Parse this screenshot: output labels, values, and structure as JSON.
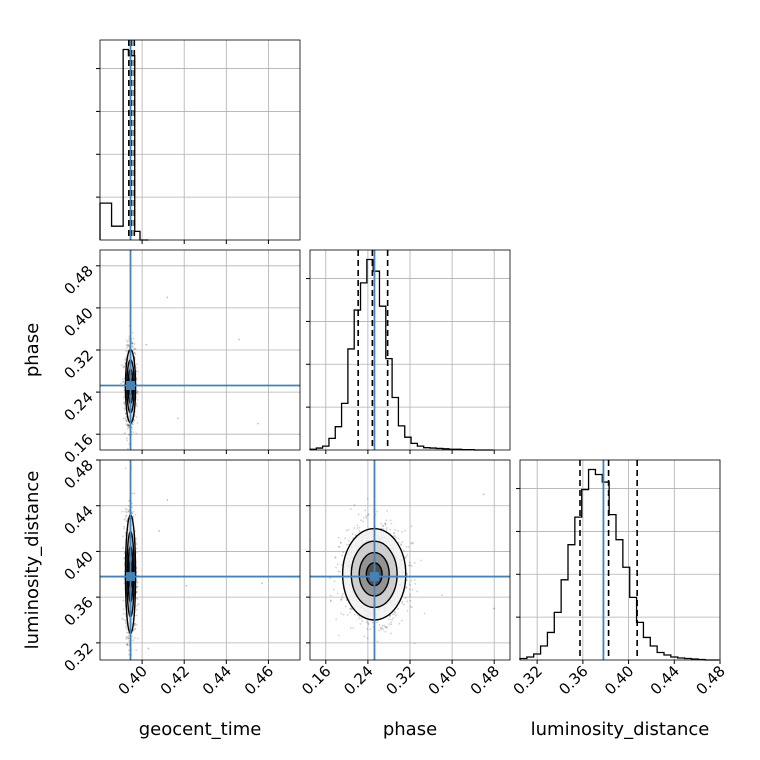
{
  "chart_data": {
    "type": "corner",
    "parameters": [
      "geocent_time",
      "phase",
      "luminosity_distance"
    ],
    "axis_labels": {
      "geocent_time": "geocent_time",
      "phase": "phase",
      "luminosity_distance": "luminosity_distance"
    },
    "ranges": {
      "geocent_time": [
        0.38,
        0.475
      ],
      "phase": [
        0.13,
        0.51
      ],
      "luminosity_distance": [
        0.305,
        0.48
      ]
    },
    "ticks": {
      "geocent_time": [
        0.4,
        0.42,
        0.44,
        0.46
      ],
      "phase": [
        0.16,
        0.24,
        0.32,
        0.4,
        0.48
      ],
      "luminosity_distance": [
        0.32,
        0.36,
        0.4,
        0.44,
        0.48
      ]
    },
    "tick_labels": {
      "geocent_time": [
        "0.40",
        "0.42",
        "0.44",
        "0.46"
      ],
      "phase": [
        "0.16",
        "0.24",
        "0.32",
        "0.40",
        "0.48"
      ],
      "luminosity_distance": [
        "0.32",
        "0.36",
        "0.40",
        "0.44",
        "0.48"
      ]
    },
    "truths": {
      "geocent_time": 0.3945,
      "phase": 0.2525,
      "luminosity_distance": 0.378
    },
    "quantiles": {
      "geocent_time": [
        0.3937,
        0.395,
        0.3963
      ],
      "phase": [
        0.2215,
        0.2485,
        0.2775
      ],
      "luminosity_distance": [
        0.3575,
        0.3825,
        0.4075
      ]
    },
    "histograms": {
      "geocent_time": {
        "edges": [
          0.38,
          0.3855,
          0.391,
          0.3935,
          0.3965,
          0.399,
          0.403
        ],
        "counts": [
          1.2,
          0.45,
          6.2,
          6.0,
          0.28,
          0.0
        ]
      },
      "phase": {
        "edges": [
          0.13,
          0.142,
          0.154,
          0.166,
          0.178,
          0.19,
          0.202,
          0.214,
          0.226,
          0.238,
          0.25,
          0.262,
          0.274,
          0.286,
          0.298,
          0.31,
          0.322,
          0.334,
          0.346,
          0.358,
          0.37,
          0.382,
          0.394,
          0.406,
          0.418,
          0.43,
          0.442,
          0.454,
          0.466,
          0.478
        ],
        "counts": [
          0.02,
          0.05,
          0.1,
          0.3,
          0.6,
          1.2,
          2.6,
          3.6,
          4.3,
          4.9,
          4.6,
          3.7,
          2.35,
          1.35,
          0.62,
          0.33,
          0.17,
          0.1,
          0.06,
          0.05,
          0.04,
          0.03,
          0.02,
          0.02,
          0.01,
          0.01,
          0.0,
          0.0,
          0.0
        ]
      },
      "luminosity_distance": {
        "edges": [
          0.305,
          0.311,
          0.317,
          0.323,
          0.329,
          0.335,
          0.341,
          0.347,
          0.353,
          0.359,
          0.365,
          0.371,
          0.377,
          0.383,
          0.389,
          0.395,
          0.401,
          0.407,
          0.413,
          0.419,
          0.425,
          0.431,
          0.437,
          0.443,
          0.449,
          0.455,
          0.461,
          0.467,
          0.473,
          0.479
        ],
        "counts": [
          0.03,
          0.06,
          0.12,
          0.28,
          0.55,
          0.95,
          1.6,
          2.3,
          2.85,
          3.4,
          3.8,
          3.7,
          3.55,
          2.9,
          2.4,
          1.85,
          1.25,
          0.75,
          0.45,
          0.28,
          0.15,
          0.1,
          0.06,
          0.04,
          0.03,
          0.02,
          0.01,
          0.0,
          0.0
        ]
      }
    },
    "scatter_2d": {
      "phase_vs_geocent_time": {
        "center": [
          0.3945,
          0.251
        ],
        "sd": [
          0.0012,
          0.035
        ],
        "outliers": [
          [
            0.402,
            0.33
          ],
          [
            0.412,
            0.42
          ],
          [
            0.417,
            0.19
          ],
          [
            0.446,
            0.34
          ],
          [
            0.455,
            0.18
          ]
        ]
      },
      "luminosity_distance_vs_geocent_time": {
        "center": [
          0.3945,
          0.38
        ],
        "sd": [
          0.0012,
          0.026
        ],
        "outliers": [
          [
            0.412,
            0.445
          ],
          [
            0.408,
            0.418
          ],
          [
            0.421,
            0.37
          ],
          [
            0.457,
            0.372
          ],
          [
            0.403,
            0.315
          ]
        ]
      },
      "luminosity_distance_vs_phase": {
        "center": [
          0.252,
          0.38
        ],
        "sd": [
          0.03,
          0.02
        ],
        "outliers": [
          [
            0.46,
            0.45
          ],
          [
            0.13,
            0.41
          ],
          [
            0.48,
            0.35
          ]
        ]
      }
    },
    "grid": true,
    "truth_color": "#4682b4",
    "hist_color": "#000000",
    "quantile_line_color": "#000000"
  }
}
